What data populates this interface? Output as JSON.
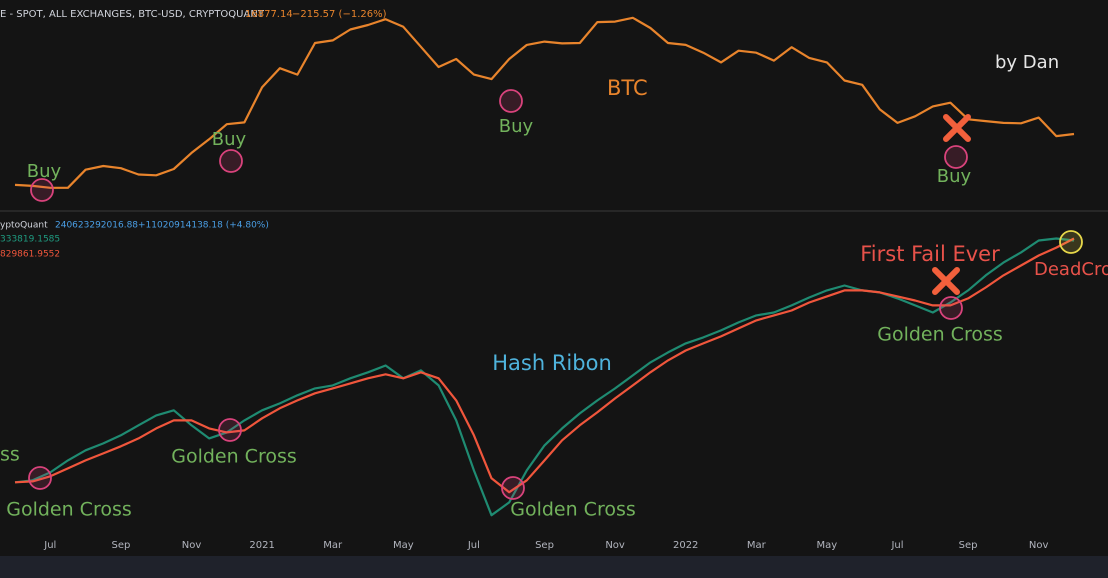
{
  "chart_data": [
    {
      "type": "line",
      "header": {
        "source": "E - SPOT, ALL EXCHANGES, BTC-USD, CRYPTOQUANT",
        "last": "16877.14",
        "change": "−215.57 (−1.26%)"
      },
      "annotations": {
        "author": "by Dan",
        "buy": [
          "Buy",
          "Buy",
          "Buy",
          "Buy"
        ]
      },
      "log": true,
      "ylim": [
        8000,
        70000
      ],
      "series": [
        {
          "name": "BTC",
          "color": "#e8842c",
          "values": [
            9500,
            9400,
            9200,
            9200,
            11300,
            11800,
            11500,
            10700,
            10600,
            11400,
            13700,
            16000,
            19000,
            19400,
            29000,
            36000,
            33500,
            48000,
            49500,
            56000,
            59000,
            63000,
            57800,
            46000,
            36500,
            40000,
            33500,
            31800,
            40000,
            47000,
            48800,
            47800,
            48000,
            61000,
            61300,
            64000,
            57000,
            48000,
            47000,
            43000,
            38500,
            44000,
            43000,
            39300,
            45800,
            40500,
            38500,
            31300,
            29800,
            22500,
            19300,
            20800,
            23300,
            24300,
            20100,
            19700,
            19300,
            19200,
            20500,
            16600,
            17000
          ]
        }
      ]
    },
    {
      "type": "line",
      "title": "Hash Ribon",
      "header": {
        "source": "yptoQuant",
        "last": "240623292016.88",
        "change": "+11020914138.18 (+4.80%)",
        "fast": "333819.1585",
        "slow": "829861.9552"
      },
      "annotations": {
        "left_cut": "ss",
        "golden_cross": [
          "Golden Cross",
          "Golden Cross",
          "Golden Cross",
          "Golden Cross"
        ],
        "fail": "First Fail Ever",
        "dead_cross": "DeadCro"
      },
      "categories": [
        null,
        null,
        "Jul",
        null,
        null,
        null,
        "Sep",
        null,
        null,
        null,
        "Nov",
        null,
        null,
        null,
        "2021",
        null,
        null,
        null,
        "Mar",
        null,
        null,
        null,
        "May",
        null,
        null,
        null,
        "Jul",
        null,
        null,
        null,
        "Sep",
        null,
        null,
        null,
        "Nov",
        null,
        null,
        null,
        "2022",
        null,
        null,
        null,
        "Mar",
        null,
        null,
        null,
        "May",
        null,
        null,
        null,
        "Jul",
        null,
        null,
        null,
        "Sep",
        null,
        null,
        null,
        "Nov",
        null,
        null
      ],
      "ylim": [
        65000000000,
        253000000000
      ],
      "series": [
        {
          "color": "#1f8b72",
          "values": [
            105200000000,
            106300000000,
            110700000000,
            117300000000,
            122900000000,
            126700000000,
            131200000000,
            136700000000,
            142200000000,
            145000000000,
            136700000000,
            129500000000,
            132800000000,
            139400000000,
            145000000000,
            148800000000,
            153300000000,
            157100000000,
            158800000000,
            162700000000,
            166000000000,
            169800000000,
            162700000000,
            167100000000,
            158800000000,
            139400000000,
            111800000000,
            87000000000,
            94100000000,
            111800000000,
            125600000000,
            135000000000,
            143300000000,
            150500000000,
            157100000000,
            164300000000,
            171500000000,
            177000000000,
            182000000000,
            185300000000,
            189200000000,
            193600000000,
            197500000000,
            199100000000,
            203000000000,
            207400000000,
            211300000000,
            214000000000,
            211300000000,
            210200000000,
            206900000000,
            203000000000,
            199100000000,
            204600000000,
            211300000000,
            219600000000,
            226700000000,
            232300000000,
            238900000000,
            240000000000,
            238900000000
          ]
        },
        {
          "color": "#f0563c",
          "values": [
            105200000000,
            105700000000,
            108500000000,
            112900000000,
            117300000000,
            121200000000,
            125100000000,
            129500000000,
            135000000000,
            139400000000,
            139400000000,
            135000000000,
            132800000000,
            133900000000,
            140600000000,
            146100000000,
            150500000000,
            154400000000,
            157100000000,
            159900000000,
            162700000000,
            164900000000,
            162700000000,
            166000000000,
            162700000000,
            150500000000,
            131200000000,
            107400000000,
            99700000000,
            106300000000,
            117300000000,
            128400000000,
            136700000000,
            143900000000,
            151600000000,
            158800000000,
            166000000000,
            172600000000,
            178100000000,
            182000000000,
            185900000000,
            190300000000,
            194700000000,
            197500000000,
            200200000000,
            204600000000,
            208000000000,
            211300000000,
            211300000000,
            210200000000,
            208000000000,
            205700000000,
            203000000000,
            203000000000,
            206900000000,
            212900000000,
            219600000000,
            225100000000,
            230600000000,
            235000000000,
            240000000000
          ]
        }
      ]
    }
  ]
}
